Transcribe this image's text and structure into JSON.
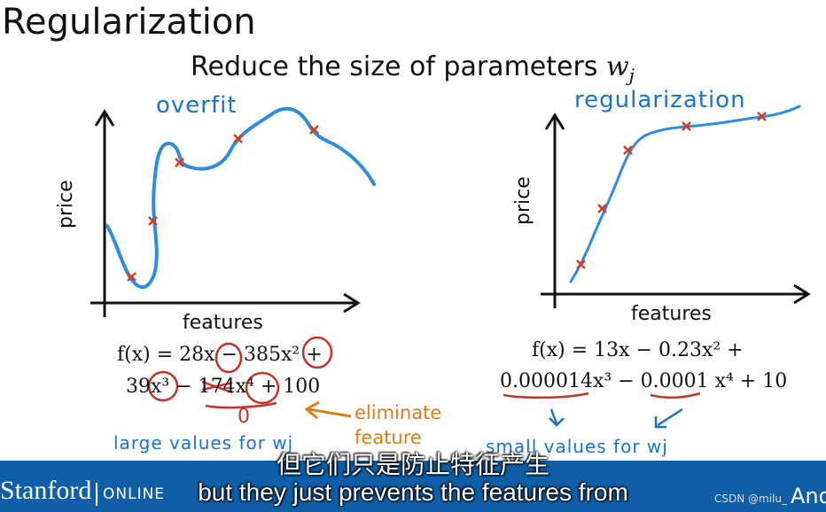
{
  "slide": {
    "title": "Regularization",
    "subtitle": "Reduce the size of parameters",
    "subtitle_var": "w",
    "subtitle_sub": "j"
  },
  "left_plot": {
    "annotation": "overfit",
    "ylabel": "price",
    "xlabel": "features",
    "eq_line1": "f(x) = 28x − 385x² +",
    "eq_line2": "39x³ − 174x⁴ + 100",
    "zero_mark": "0",
    "eliminate_note": "eliminate feature",
    "large_values_note": "large values for wj"
  },
  "right_plot": {
    "annotation": "regularization",
    "ylabel": "price",
    "xlabel": "features",
    "eq_line1": "f(x) = 13x − 0.23x² +",
    "eq_line2": "0.000014x³ − 0.0001 x⁴ + 10",
    "small_values_note": "small values for wj"
  },
  "video_bar": {
    "brand": "Stanford",
    "brand_suffix": "ONLINE",
    "subtitle_cn": "但它们只是防止特征产生",
    "subtitle_en": "but they just prevents the features from",
    "watermark": "CSDN @milu_",
    "corner_text": "And"
  },
  "colors": {
    "curve": "#2d8be0",
    "marker": "#d63a1e",
    "banner": "#0e5fa8",
    "handwriting": "#1a72c9"
  }
}
